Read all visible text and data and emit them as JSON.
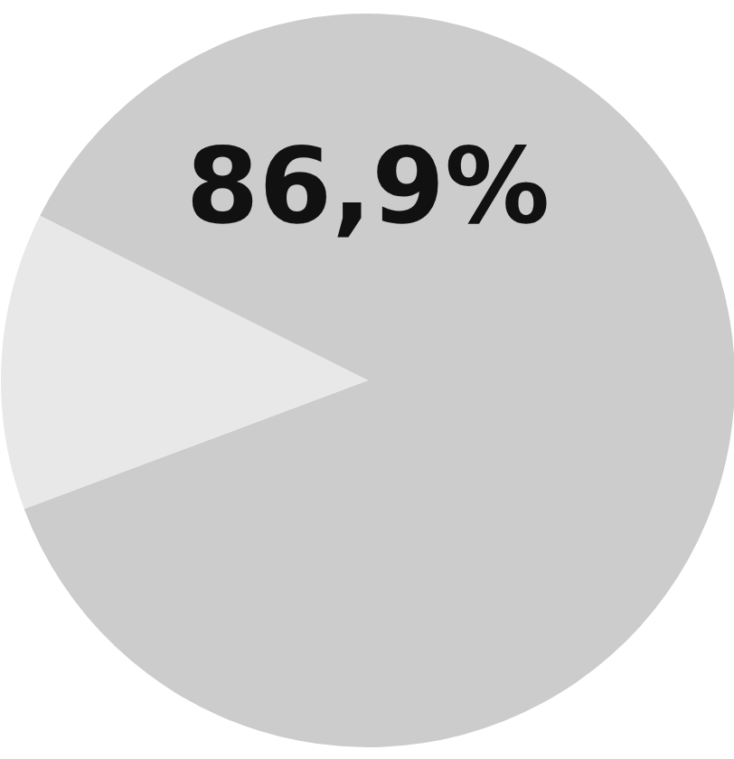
{
  "chart_data": {
    "type": "pie",
    "categories": [
      null,
      null
    ],
    "values": [
      86.9,
      13.1
    ],
    "colors": [
      "#cccccc",
      "#e8e8e8"
    ],
    "value_labels": [
      "86,9%",
      null
    ],
    "legend": false
  }
}
